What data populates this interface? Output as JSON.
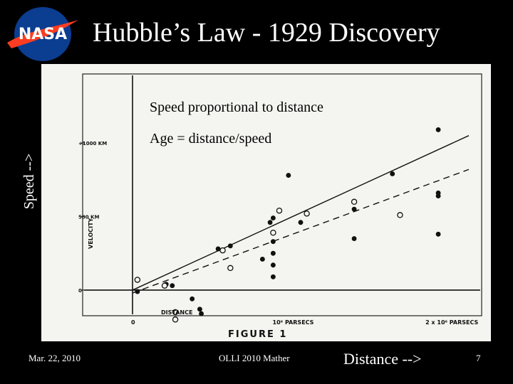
{
  "slide": {
    "title": "Hubble’s Law - 1929 Discovery",
    "logo_text": "NASA",
    "footer_date": "Mar. 22, 2010",
    "footer_center": "OLLI 2010 Mather",
    "page_number": "7",
    "speed_label": "Speed -->",
    "distance_label": "Distance -->",
    "annotation_1": "Speed proportional to distance",
    "annotation_2": "Age = distance/speed",
    "colors": {
      "background": "#000000",
      "text": "#ffffff",
      "logo_blue": "#0b3d91",
      "logo_red": "#fc3d21"
    }
  },
  "chart_data": {
    "type": "scatter",
    "title": "",
    "figure_caption": "FIGURE 1",
    "xlabel": "DISTANCE",
    "ylabel": "VELOCITY",
    "x_tick_labels": [
      "0",
      "10⁶ PARSECS",
      "2 x 10⁶ PARSECS"
    ],
    "x_tick_values": [
      0,
      1000000,
      2000000
    ],
    "y_tick_labels": [
      "0",
      "500 KM",
      "+1000 KM"
    ],
    "y_tick_values": [
      0,
      500,
      1000
    ],
    "xlim": [
      0,
      2200000
    ],
    "ylim": [
      -300,
      1150
    ],
    "series": [
      {
        "marker": "filled",
        "x": [
          32000,
          220000,
          260000,
          390000,
          440000,
          450000,
          560000,
          640000,
          850000,
          900000,
          920000,
          920000,
          920000,
          920000,
          920000,
          1020000,
          1100000,
          1450000,
          1450000,
          1700000,
          2000000,
          2000000,
          2000000,
          2000000
        ],
        "y": [
          -10,
          40,
          30,
          -60,
          -130,
          -160,
          280,
          300,
          210,
          460,
          490,
          330,
          170,
          90,
          250,
          780,
          460,
          550,
          350,
          790,
          1090,
          640,
          660,
          380
        ]
      },
      {
        "marker": "open",
        "x": [
          32000,
          210000,
          280000,
          280000,
          590000,
          640000,
          920000,
          960000,
          1140000,
          1450000,
          1750000
        ],
        "y": [
          70,
          30,
          -150,
          -200,
          270,
          150,
          390,
          540,
          520,
          600,
          510
        ]
      }
    ],
    "lines": [
      {
        "style": "solid",
        "x": [
          0,
          2200000
        ],
        "y": [
          0,
          1050
        ]
      },
      {
        "style": "dashed",
        "x": [
          0,
          2200000
        ],
        "y": [
          -20,
          820
        ]
      }
    ],
    "grid": false,
    "legend": "none"
  }
}
